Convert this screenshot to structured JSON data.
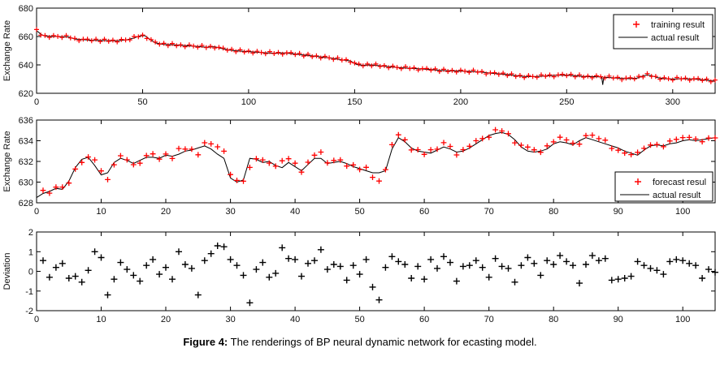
{
  "caption": {
    "label": "Figure 4:",
    "text": "The renderings of BP neural dynamic network for ecasting model."
  },
  "deviation_values": [
    0.55,
    -0.3,
    0.2,
    0.4,
    -0.35,
    -0.25,
    -0.55,
    0.05,
    1.0,
    0.7,
    -1.2,
    -0.4,
    0.45,
    0.1,
    -0.2,
    -0.5,
    0.3,
    0.6,
    -0.15,
    0.2,
    -0.4,
    1.0,
    0.35,
    0.15,
    -1.2,
    0.55,
    0.9,
    1.3,
    1.25,
    0.6,
    0.3,
    -0.2,
    -1.6,
    0.1,
    0.45,
    -0.3,
    -0.1,
    1.2,
    0.65,
    0.6,
    -0.25,
    0.4,
    0.55,
    1.1,
    0.1,
    0.35,
    0.25,
    -0.45,
    0.3,
    -0.15,
    0.6,
    -0.8,
    -1.45,
    0.2,
    0.75,
    0.5,
    0.35,
    -0.35,
    0.25,
    -0.4,
    0.6,
    0.15,
    0.75,
    0.45,
    -0.5,
    0.25,
    0.3,
    0.55,
    0.2,
    -0.3,
    0.65,
    0.25,
    0.15,
    -0.55,
    0.3,
    0.7,
    0.4,
    -0.2,
    0.55,
    0.35,
    0.8,
    0.5,
    0.3,
    -0.6,
    0.35,
    0.8,
    0.55,
    0.65,
    -0.45,
    -0.4,
    -0.35,
    -0.25,
    0.5,
    0.3,
    0.15,
    0.05,
    -0.15,
    0.5,
    0.6,
    0.55,
    0.4,
    0.3,
    -0.35,
    0.1,
    -0.05
  ],
  "chart_data": [
    {
      "id": "training",
      "type": "line+scatter",
      "ylabel": "Exchange Rate",
      "xlabel": "",
      "xlim": [
        0,
        320
      ],
      "ylim": [
        620,
        680
      ],
      "xticks": [
        0,
        50,
        100,
        150,
        200,
        250,
        300
      ],
      "yticks": [
        620,
        640,
        660,
        680
      ],
      "grid": false,
      "legend": {
        "position": "top-right",
        "items": [
          {
            "marker": "plus",
            "color": "#ff0000",
            "label": "training result"
          },
          {
            "marker": "line",
            "color": "#000000",
            "label": "actual result"
          }
        ]
      },
      "line_color": "#000000",
      "marker_color": "#ff0000",
      "marker_size": 3,
      "marker_width": 1.2,
      "marker_source": "noise",
      "marker_step": 2,
      "noise_cycle": [
        0.9,
        -0.5,
        0.4,
        -0.8,
        0.7,
        0.1,
        -0.6,
        1.0,
        -0.2,
        0.5,
        -0.9,
        0.3,
        0.6,
        -0.4,
        0.8,
        -0.7
      ],
      "actual_line": [
        [
          0,
          664
        ],
        [
          1,
          663
        ],
        [
          2,
          661.5
        ],
        [
          4,
          660.3
        ],
        [
          8,
          660
        ],
        [
          12,
          659.9
        ],
        [
          15,
          659.7
        ],
        [
          18,
          658.2
        ],
        [
          22,
          657.8
        ],
        [
          26,
          657.4
        ],
        [
          30,
          657.2
        ],
        [
          34,
          657.1
        ],
        [
          38,
          657
        ],
        [
          42,
          657.5
        ],
        [
          46,
          659
        ],
        [
          49,
          660.5
        ],
        [
          51,
          660.6
        ],
        [
          53,
          658.5
        ],
        [
          56,
          655.5
        ],
        [
          60,
          654.4
        ],
        [
          64,
          654.2
        ],
        [
          68,
          653.8
        ],
        [
          72,
          653.4
        ],
        [
          76,
          653
        ],
        [
          80,
          652.4
        ],
        [
          84,
          652.8
        ],
        [
          88,
          651.3
        ],
        [
          92,
          650.2
        ],
        [
          96,
          649.7
        ],
        [
          100,
          649.4
        ],
        [
          104,
          648.9
        ],
        [
          108,
          648.5
        ],
        [
          112,
          648.2
        ],
        [
          116,
          648.4
        ],
        [
          120,
          648
        ],
        [
          124,
          647.3
        ],
        [
          128,
          646.6
        ],
        [
          132,
          646
        ],
        [
          136,
          645.3
        ],
        [
          140,
          644.5
        ],
        [
          144,
          643.6
        ],
        [
          148,
          642.8
        ],
        [
          151,
          640.2
        ],
        [
          154,
          639.7
        ],
        [
          158,
          640
        ],
        [
          162,
          639.4
        ],
        [
          166,
          638.8
        ],
        [
          170,
          638.1
        ],
        [
          174,
          637.8
        ],
        [
          178,
          637.5
        ],
        [
          182,
          637.1
        ],
        [
          186,
          636.7
        ],
        [
          190,
          636.1
        ],
        [
          194,
          635.9
        ],
        [
          198,
          635.7
        ],
        [
          202,
          635.5
        ],
        [
          206,
          635.3
        ],
        [
          210,
          634.9
        ],
        [
          214,
          634.1
        ],
        [
          218,
          633.7
        ],
        [
          222,
          633.2
        ],
        [
          226,
          632.4
        ],
        [
          230,
          631.9
        ],
        [
          234,
          631.7
        ],
        [
          238,
          632
        ],
        [
          242,
          632.4
        ],
        [
          246,
          632.7
        ],
        [
          250,
          632.8
        ],
        [
          254,
          632.3
        ],
        [
          258,
          631.9
        ],
        [
          262,
          631.7
        ],
        [
          265,
          631.6
        ],
        [
          266.5,
          631.6
        ],
        [
          267,
          626
        ],
        [
          267.5,
          631.4
        ],
        [
          271,
          631
        ],
        [
          275,
          630.6
        ],
        [
          279,
          630.3
        ],
        [
          283,
          630.6
        ],
        [
          286,
          632.2
        ],
        [
          288,
          633
        ],
        [
          290,
          632.4
        ],
        [
          293,
          631
        ],
        [
          296,
          630.3
        ],
        [
          300,
          630
        ],
        [
          304,
          630.3
        ],
        [
          308,
          630.1
        ],
        [
          312,
          629.8
        ],
        [
          316,
          629.2
        ],
        [
          320,
          628.4
        ]
      ]
    },
    {
      "id": "forecast",
      "type": "line+scatter",
      "ylabel": "Exchange Rate",
      "xlabel": "",
      "xlim": [
        0,
        105
      ],
      "ylim": [
        628,
        636
      ],
      "xticks": [
        0,
        10,
        20,
        30,
        40,
        50,
        60,
        70,
        80,
        90,
        100
      ],
      "yticks": [
        628,
        630,
        632,
        634,
        636
      ],
      "grid": false,
      "legend": {
        "position": "bottom-right",
        "items": [
          {
            "marker": "plus",
            "color": "#ff0000",
            "label": "forecast resul"
          },
          {
            "marker": "line",
            "color": "#000000",
            "label": "actual result"
          }
        ]
      },
      "line_color": "#000000",
      "marker_color": "#ff0000",
      "marker_size": 3.4,
      "marker_width": 1.3,
      "marker_source": "forecast",
      "dev_scale": 0.55,
      "actual_line": [
        [
          0,
          628.5
        ],
        [
          1,
          628.9
        ],
        [
          2,
          629.1
        ],
        [
          3,
          629.4
        ],
        [
          4,
          629.3
        ],
        [
          5,
          630.1
        ],
        [
          6,
          631.4
        ],
        [
          7,
          632.2
        ],
        [
          8,
          632.4
        ],
        [
          9,
          631.6
        ],
        [
          10,
          630.7
        ],
        [
          11,
          630.9
        ],
        [
          12,
          631.9
        ],
        [
          13,
          632.3
        ],
        [
          14,
          632.1
        ],
        [
          15,
          631.8
        ],
        [
          16,
          632.1
        ],
        [
          17,
          632.4
        ],
        [
          18,
          632.4
        ],
        [
          19,
          632.3
        ],
        [
          20,
          632.6
        ],
        [
          21,
          632.5
        ],
        [
          22,
          632.7
        ],
        [
          23,
          633
        ],
        [
          24,
          633.1
        ],
        [
          25,
          633.3
        ],
        [
          26,
          633.5
        ],
        [
          27,
          633.2
        ],
        [
          28,
          632.7
        ],
        [
          29,
          632.3
        ],
        [
          30,
          630.4
        ],
        [
          31,
          630
        ],
        [
          32,
          630.2
        ],
        [
          33,
          632.3
        ],
        [
          34,
          632.2
        ],
        [
          35,
          631.9
        ],
        [
          36,
          632
        ],
        [
          37,
          631.6
        ],
        [
          38,
          631.4
        ],
        [
          39,
          631.9
        ],
        [
          40,
          631.5
        ],
        [
          41,
          631.1
        ],
        [
          42,
          631.7
        ],
        [
          43,
          632.3
        ],
        [
          44,
          632.3
        ],
        [
          45,
          631.8
        ],
        [
          46,
          631.9
        ],
        [
          47,
          632
        ],
        [
          48,
          631.8
        ],
        [
          49,
          631.5
        ],
        [
          50,
          631.3
        ],
        [
          51,
          631.1
        ],
        [
          52,
          630.9
        ],
        [
          53,
          630.9
        ],
        [
          54,
          631.1
        ],
        [
          55,
          633.2
        ],
        [
          56,
          634.3
        ],
        [
          57,
          633.9
        ],
        [
          58,
          633.3
        ],
        [
          59,
          633
        ],
        [
          60,
          632.9
        ],
        [
          61,
          632.8
        ],
        [
          62,
          633.1
        ],
        [
          63,
          633.4
        ],
        [
          64,
          633.2
        ],
        [
          65,
          632.9
        ],
        [
          66,
          633
        ],
        [
          67,
          633.3
        ],
        [
          68,
          633.7
        ],
        [
          69,
          634.1
        ],
        [
          70,
          634.5
        ],
        [
          71,
          634.7
        ],
        [
          72,
          634.8
        ],
        [
          73,
          634.6
        ],
        [
          74,
          634.1
        ],
        [
          75,
          633.4
        ],
        [
          76,
          633
        ],
        [
          77,
          632.9
        ],
        [
          78,
          633
        ],
        [
          79,
          633.2
        ],
        [
          80,
          633.7
        ],
        [
          81,
          633.9
        ],
        [
          82,
          633.8
        ],
        [
          83,
          633.6
        ],
        [
          84,
          634
        ],
        [
          85,
          634.3
        ],
        [
          86,
          634.1
        ],
        [
          87,
          633.9
        ],
        [
          88,
          633.7
        ],
        [
          89,
          633.5
        ],
        [
          90,
          633.3
        ],
        [
          91,
          633
        ],
        [
          92,
          632.8
        ],
        [
          93,
          632.6
        ],
        [
          94,
          633.1
        ],
        [
          95,
          633.5
        ],
        [
          96,
          633.6
        ],
        [
          97,
          633.5
        ],
        [
          98,
          633.7
        ],
        [
          99,
          633.8
        ],
        [
          100,
          634
        ],
        [
          101,
          634.1
        ],
        [
          102,
          634
        ],
        [
          103,
          634.1
        ],
        [
          104,
          634.2
        ],
        [
          105,
          634.3
        ]
      ]
    },
    {
      "id": "deviation",
      "type": "scatter",
      "ylabel": "Deviation",
      "xlabel": "",
      "xlim": [
        0,
        105
      ],
      "ylim": [
        -2,
        2
      ],
      "xticks": [
        0,
        10,
        20,
        30,
        40,
        50,
        60,
        70,
        80,
        90,
        100
      ],
      "yticks": [
        -2,
        -1,
        0,
        1,
        2
      ],
      "grid": false,
      "marker_color": "#000000",
      "marker_size": 4,
      "marker_width": 1.4,
      "marker_source": "deviation"
    }
  ]
}
